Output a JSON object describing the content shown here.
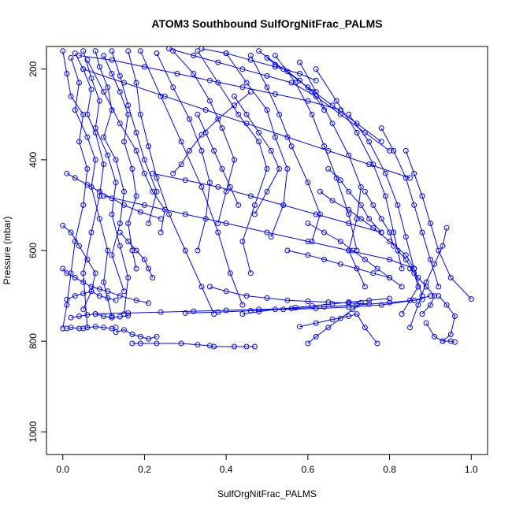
{
  "chart_data": {
    "type": "scatter",
    "title": "ATOM3 Southbound SulfOrgNitFrac_PALMS",
    "xlabel": "SulfOrgNitFrac_PALMS",
    "ylabel": "Pressure (mbar)",
    "xlim": [
      -0.04,
      1.04
    ],
    "ylim": [
      1050,
      150
    ],
    "y_reversed": true,
    "xticks": [
      0.0,
      0.2,
      0.4,
      0.6,
      0.8,
      1.0
    ],
    "xtick_labels": [
      "0.0",
      "0.2",
      "0.4",
      "0.6",
      "0.8",
      "1.0"
    ],
    "yticks": [
      200,
      400,
      600,
      800,
      1000
    ],
    "ytick_labels": [
      "200",
      "400",
      "600",
      "800",
      "1000"
    ],
    "grid": false,
    "legend": "none",
    "color": "#0000ff",
    "marker": "open-circle",
    "connect_points": true,
    "series": [
      {
        "x": [
          0.0,
          0.01,
          0.02,
          0.05,
          0.04,
          0.06,
          0.05,
          0.03,
          0.02,
          0.01,
          0.0
        ],
        "y": [
          160,
          210,
          260,
          300,
          360,
          420,
          500,
          580,
          650,
          720,
          772
        ]
      },
      {
        "x": [
          0.03,
          0.05,
          0.07,
          0.06,
          0.08,
          0.1,
          0.09,
          0.07,
          0.05,
          0.06
        ],
        "y": [
          165,
          200,
          245,
          300,
          340,
          410,
          480,
          560,
          650,
          770
        ]
      },
      {
        "x": [
          0.08,
          0.09,
          0.11,
          0.12,
          0.1,
          0.13,
          0.15,
          0.14,
          0.12,
          0.15
        ],
        "y": [
          160,
          195,
          240,
          290,
          350,
          400,
          470,
          540,
          610,
          690
        ]
      },
      {
        "x": [
          0.1,
          0.12,
          0.14,
          0.16,
          0.15,
          0.17,
          0.18,
          0.16,
          0.17,
          0.18
        ],
        "y": [
          170,
          210,
          250,
          300,
          360,
          420,
          480,
          540,
          600,
          640
        ]
      },
      {
        "x": [
          0.02,
          0.04,
          0.03,
          0.06,
          0.08,
          0.07,
          0.09,
          0.11,
          0.1,
          0.12
        ],
        "y": [
          175,
          230,
          290,
          350,
          400,
          460,
          530,
          600,
          670,
          745
        ]
      },
      {
        "x": [
          0.05,
          0.07,
          0.09,
          0.08,
          0.11,
          0.13,
          0.12,
          0.14,
          0.16,
          0.15
        ],
        "y": [
          160,
          220,
          270,
          330,
          390,
          450,
          520,
          590,
          660,
          740
        ]
      },
      {
        "x": [
          0.06,
          0.1,
          0.14,
          0.18,
          0.2,
          0.22,
          0.25,
          0.24
        ],
        "y": [
          180,
          250,
          320,
          380,
          430,
          470,
          510,
          560
        ]
      },
      {
        "x": [
          0.12,
          0.14,
          0.16,
          0.18,
          0.2,
          0.23,
          0.21
        ],
        "y": [
          160,
          215,
          280,
          340,
          400,
          470,
          540
        ]
      },
      {
        "x": [
          0.16,
          0.18,
          0.19,
          0.21,
          0.23,
          0.26,
          0.3,
          0.34,
          0.37
        ],
        "y": [
          160,
          230,
          300,
          370,
          440,
          520,
          600,
          680,
          740
        ]
      },
      {
        "x": [
          0.19,
          0.24,
          0.29,
          0.34,
          0.38,
          0.41,
          0.44
        ],
        "y": [
          160,
          260,
          360,
          460,
          560,
          650,
          720
        ]
      },
      {
        "x": [
          0.23,
          0.27,
          0.31,
          0.34,
          0.36,
          0.35,
          0.33
        ],
        "y": [
          165,
          240,
          310,
          380,
          450,
          530,
          600
        ]
      },
      {
        "x": [
          0.27,
          0.32,
          0.36,
          0.39,
          0.42,
          0.4,
          0.38
        ],
        "y": [
          160,
          210,
          270,
          330,
          400,
          470,
          540
        ]
      },
      {
        "x": [
          0.33,
          0.38,
          0.43,
          0.48,
          0.5,
          0.47,
          0.44,
          0.46
        ],
        "y": [
          160,
          230,
          300,
          360,
          420,
          500,
          580,
          650
        ]
      },
      {
        "x": [
          0.4,
          0.45,
          0.5,
          0.52,
          0.55,
          0.54,
          0.51
        ],
        "y": [
          165,
          230,
          290,
          350,
          420,
          500,
          570
        ]
      },
      {
        "x": [
          0.46,
          0.5,
          0.53,
          0.56,
          0.6,
          0.63,
          0.61
        ],
        "y": [
          170,
          240,
          300,
          370,
          450,
          520,
          580
        ]
      },
      {
        "x": [
          0.52,
          0.57,
          0.61,
          0.64,
          0.67,
          0.7,
          0.72
        ],
        "y": [
          170,
          230,
          300,
          370,
          440,
          520,
          600
        ]
      },
      {
        "x": [
          0.58,
          0.62,
          0.66,
          0.7,
          0.73,
          0.72,
          0.7,
          0.74
        ],
        "y": [
          185,
          250,
          320,
          390,
          460,
          530,
          600,
          680
        ]
      },
      {
        "x": [
          0.62,
          0.67,
          0.72,
          0.76,
          0.79,
          0.81,
          0.83
        ],
        "y": [
          200,
          270,
          340,
          410,
          480,
          560,
          640
        ]
      },
      {
        "x": [
          0.7,
          0.75,
          0.79,
          0.82,
          0.84,
          0.86,
          0.88
        ],
        "y": [
          300,
          360,
          430,
          500,
          570,
          640,
          700
        ]
      },
      {
        "x": [
          0.78,
          0.81,
          0.84,
          0.86,
          0.88,
          0.9,
          0.92
        ],
        "y": [
          330,
          380,
          440,
          500,
          560,
          620,
          680
        ]
      },
      {
        "x": [
          0.84,
          0.86,
          0.88,
          0.9,
          0.92,
          0.95,
          1.0
        ],
        "y": [
          380,
          430,
          480,
          540,
          600,
          660,
          707
        ]
      },
      {
        "x": [
          0.94,
          0.93,
          0.91,
          0.89,
          0.87,
          0.85
        ],
        "y": [
          550,
          590,
          630,
          670,
          720,
          770
        ]
      },
      {
        "x": [
          0.89,
          0.91,
          0.93,
          0.95,
          0.96
        ],
        "y": [
          760,
          790,
          800,
          800,
          802
        ]
      },
      {
        "x": [
          0.92,
          0.94,
          0.96,
          0.95,
          0.93
        ],
        "y": [
          700,
          720,
          745,
          785,
          800
        ]
      },
      {
        "x": [
          0.08,
          0.16,
          0.24,
          0.32,
          0.4,
          0.48,
          0.56,
          0.64,
          0.72,
          0.8,
          0.88
        ],
        "y": [
          740,
          738,
          736,
          734,
          732,
          730,
          728,
          724,
          720,
          715,
          708
        ]
      },
      {
        "x": [
          0.3,
          0.38,
          0.46,
          0.54,
          0.62,
          0.7,
          0.78,
          0.86,
          0.9
        ],
        "y": [
          738,
          736,
          733,
          730,
          728,
          725,
          720,
          710,
          700
        ]
      },
      {
        "x": [
          0.17,
          0.19,
          0.23,
          0.29,
          0.33,
          0.36,
          0.37,
          0.42,
          0.45,
          0.47
        ],
        "y": [
          805,
          805,
          805,
          805,
          808,
          810,
          812,
          812,
          812,
          812
        ]
      },
      {
        "x": [
          0.01,
          0.02,
          0.04,
          0.05,
          0.06,
          0.08,
          0.1,
          0.12,
          0.13
        ],
        "y": [
          772,
          770,
          772,
          772,
          770,
          768,
          770,
          772,
          770
        ]
      },
      {
        "x": [
          0.02,
          0.04,
          0.06,
          0.08,
          0.1,
          0.12,
          0.14,
          0.16
        ],
        "y": [
          748,
          745,
          742,
          740,
          745,
          748,
          746,
          744
        ]
      },
      {
        "x": [
          0.01,
          0.03,
          0.05,
          0.07,
          0.09,
          0.11,
          0.13
        ],
        "y": [
          708,
          700,
          695,
          690,
          700,
          705,
          710
        ]
      },
      {
        "x": [
          0.0,
          0.02,
          0.04,
          0.06,
          0.08,
          0.07,
          0.05
        ],
        "y": [
          545,
          560,
          590,
          620,
          650,
          690,
          730
        ]
      },
      {
        "x": [
          0.0,
          0.01,
          0.03,
          0.05,
          0.07,
          0.09,
          0.11,
          0.14,
          0.18,
          0.21
        ],
        "y": [
          640,
          650,
          660,
          670,
          680,
          685,
          690,
          700,
          710,
          716
        ]
      },
      {
        "x": [
          0.36,
          0.4,
          0.45,
          0.5,
          0.55,
          0.6,
          0.65,
          0.7,
          0.75
        ],
        "y": [
          680,
          690,
          700,
          705,
          710,
          712,
          714,
          716,
          718
        ]
      },
      {
        "x": [
          0.44,
          0.48,
          0.52,
          0.57,
          0.61,
          0.66,
          0.7,
          0.75,
          0.8
        ],
        "y": [
          740,
          735,
          730,
          726,
          722,
          718,
          714,
          710,
          706
        ]
      },
      {
        "x": [
          0.58,
          0.62,
          0.66,
          0.7,
          0.72,
          0.74,
          0.77
        ],
        "y": [
          768,
          760,
          752,
          745,
          740,
          770,
          805
        ]
      },
      {
        "x": [
          0.6,
          0.62,
          0.65,
          0.68,
          0.71,
          0.73
        ],
        "y": [
          805,
          790,
          770,
          750,
          730,
          715
        ]
      },
      {
        "x": [
          0.55,
          0.6,
          0.64,
          0.68,
          0.72,
          0.76,
          0.8
        ],
        "y": [
          600,
          610,
          620,
          630,
          640,
          650,
          660
        ]
      },
      {
        "x": [
          0.6,
          0.64,
          0.68,
          0.71,
          0.74,
          0.77,
          0.8,
          0.83
        ],
        "y": [
          540,
          560,
          580,
          600,
          620,
          640,
          660,
          680
        ]
      },
      {
        "x": [
          0.63,
          0.66,
          0.7,
          0.73,
          0.76,
          0.8,
          0.84,
          0.86
        ],
        "y": [
          470,
          490,
          510,
          530,
          550,
          580,
          610,
          640
        ]
      },
      {
        "x": [
          0.65,
          0.68,
          0.7,
          0.73,
          0.75,
          0.78
        ],
        "y": [
          420,
          445,
          470,
          500,
          530,
          560
        ]
      },
      {
        "x": [
          0.22,
          0.3,
          0.38,
          0.46,
          0.54,
          0.62,
          0.7,
          0.78
        ],
        "y": [
          430,
          445,
          460,
          480,
          500,
          520,
          540,
          560
        ]
      },
      {
        "x": [
          0.1,
          0.2,
          0.3,
          0.4,
          0.5,
          0.6,
          0.7,
          0.8,
          0.86
        ],
        "y": [
          480,
          500,
          520,
          540,
          560,
          580,
          600,
          620,
          640
        ]
      },
      {
        "x": [
          0.05,
          0.15,
          0.25,
          0.35,
          0.45,
          0.55,
          0.65,
          0.75,
          0.85
        ],
        "y": [
          200,
          230,
          260,
          290,
          320,
          350,
          380,
          410,
          440
        ]
      },
      {
        "x": [
          0.04,
          0.12,
          0.2,
          0.28,
          0.36,
          0.44,
          0.52,
          0.6,
          0.68
        ],
        "y": [
          170,
          180,
          195,
          210,
          225,
          240,
          255,
          270,
          290
        ]
      },
      {
        "x": [
          0.26,
          0.32,
          0.38,
          0.44,
          0.5,
          0.56,
          0.62,
          0.68,
          0.74,
          0.8
        ],
        "y": [
          155,
          170,
          185,
          200,
          215,
          230,
          260,
          300,
          340,
          380
        ]
      },
      {
        "x": [
          0.34,
          0.4,
          0.46,
          0.52,
          0.58,
          0.62
        ],
        "y": [
          155,
          165,
          180,
          195,
          210,
          225
        ]
      },
      {
        "x": [
          0.48,
          0.54,
          0.6,
          0.66,
          0.72,
          0.78
        ],
        "y": [
          160,
          200,
          240,
          280,
          320,
          360
        ]
      },
      {
        "x": [
          0.5,
          0.52,
          0.55,
          0.58,
          0.61,
          0.64
        ],
        "y": [
          175,
          190,
          205,
          225,
          250,
          290
        ]
      },
      {
        "x": [
          0.42,
          0.45,
          0.48,
          0.51,
          0.53,
          0.5,
          0.47
        ],
        "y": [
          260,
          300,
          340,
          380,
          420,
          470,
          520
        ]
      },
      {
        "x": [
          0.33,
          0.35,
          0.37,
          0.39,
          0.41,
          0.43
        ],
        "y": [
          300,
          340,
          380,
          420,
          460,
          500
        ]
      },
      {
        "x": [
          0.46,
          0.42,
          0.38,
          0.34,
          0.31,
          0.29,
          0.27
        ],
        "y": [
          250,
          280,
          310,
          345,
          380,
          410,
          430
        ]
      },
      {
        "x": [
          0.01,
          0.03,
          0.06,
          0.09,
          0.12,
          0.15,
          0.19,
          0.24
        ],
        "y": [
          430,
          440,
          455,
          470,
          485,
          500,
          515,
          530
        ]
      },
      {
        "x": [
          0.14,
          0.16,
          0.18,
          0.2,
          0.21,
          0.22
        ],
        "y": [
          560,
          580,
          600,
          620,
          640,
          660
        ]
      },
      {
        "x": [
          0.13,
          0.15,
          0.17,
          0.19,
          0.21,
          0.23
        ],
        "y": [
          780,
          775,
          785,
          790,
          795,
          790
        ]
      },
      {
        "x": [
          0.82,
          0.84,
          0.86,
          0.87,
          0.85,
          0.83
        ],
        "y": [
          600,
          620,
          650,
          680,
          710,
          740
        ]
      },
      {
        "x": [
          0.74,
          0.76,
          0.78,
          0.8,
          0.81
        ],
        "y": [
          470,
          500,
          530,
          560,
          590
        ]
      },
      {
        "x": [
          0.85,
          0.87,
          0.89,
          0.91,
          0.9,
          0.88
        ],
        "y": [
          640,
          660,
          680,
          700,
          720,
          740
        ]
      }
    ]
  }
}
